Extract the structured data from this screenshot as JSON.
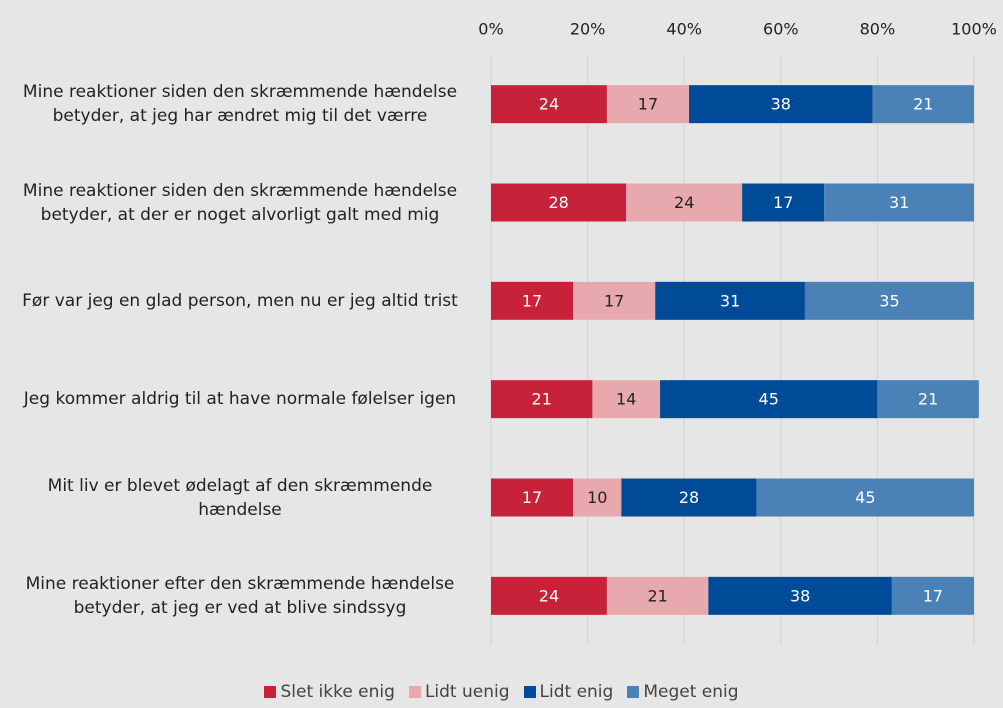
{
  "chart_data": {
    "type": "stacked_barh",
    "categories": [
      "Mine reaktioner siden den skræmmende hændelse betyder, at jeg har ændret mig til det værre",
      "Mine reaktioner siden den skræmmende hændelse betyder, at der er noget alvorligt galt med mig",
      "Før var jeg en glad person, men nu er jeg altid trist",
      "Jeg kommer aldrig til at have normale følelser igen",
      "Mit liv er blevet ødelagt af den skræmmende hændelse",
      "Mine reaktioner efter den skræmmende hændelse betyder, at jeg er ved at blive sindssyg"
    ],
    "series": [
      {
        "name": "Slet ikke enig",
        "color": "#c8213a",
        "values": [
          24,
          28,
          17,
          21,
          17,
          24
        ]
      },
      {
        "name": "Lidt uenig",
        "color": "#e8a9ae",
        "values": [
          17,
          24,
          17,
          14,
          10,
          21
        ]
      },
      {
        "name": "Lidt enig",
        "color": "#004b98",
        "values": [
          38,
          17,
          31,
          45,
          28,
          38
        ]
      },
      {
        "name": "Meget enig",
        "color": "#4a82b8",
        "values": [
          21,
          31,
          35,
          21,
          45,
          17
        ]
      }
    ],
    "xlim": [
      0,
      100
    ],
    "xticks": [
      {
        "value": 0,
        "label": "0%"
      },
      {
        "value": 20,
        "label": "20%"
      },
      {
        "value": 40,
        "label": "40%"
      },
      {
        "value": 60,
        "label": "60%"
      },
      {
        "value": 80,
        "label": "80%"
      },
      {
        "value": 100,
        "label": "100%"
      }
    ],
    "grid": true,
    "legend": "bottom"
  }
}
